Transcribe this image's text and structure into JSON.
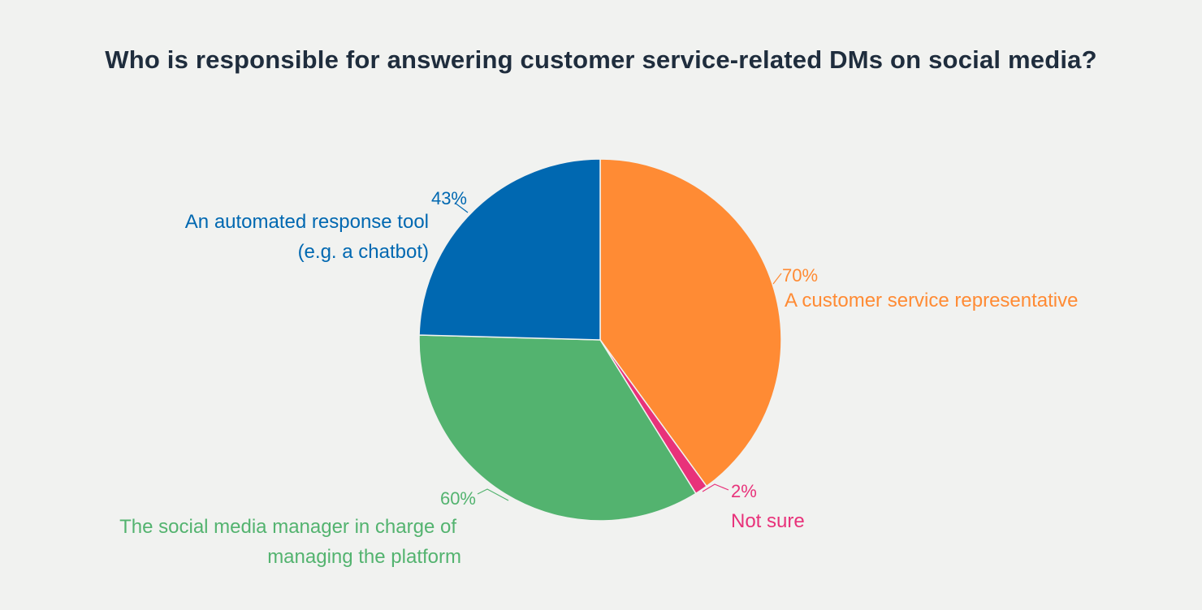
{
  "chart_data": {
    "type": "pie",
    "title": "Who is responsible for answering customer service-related DMs on social media?",
    "legend": "none",
    "slices": [
      {
        "label_lines": [
          "A customer service representative"
        ],
        "value_label": "70%",
        "value": 70,
        "color": "#ff8b34"
      },
      {
        "label_lines": [
          "Not sure"
        ],
        "value_label": "2%",
        "value": 2,
        "color": "#e8327a"
      },
      {
        "label_lines": [
          "The social media manager in charge of",
          "managing the platform"
        ],
        "value_label": "60%",
        "value": 60,
        "color": "#53b36f"
      },
      {
        "label_lines": [
          "An automated response tool",
          "(e.g. a chatbot)"
        ],
        "value_label": "43%",
        "value": 43,
        "color": "#0068b1"
      }
    ]
  }
}
